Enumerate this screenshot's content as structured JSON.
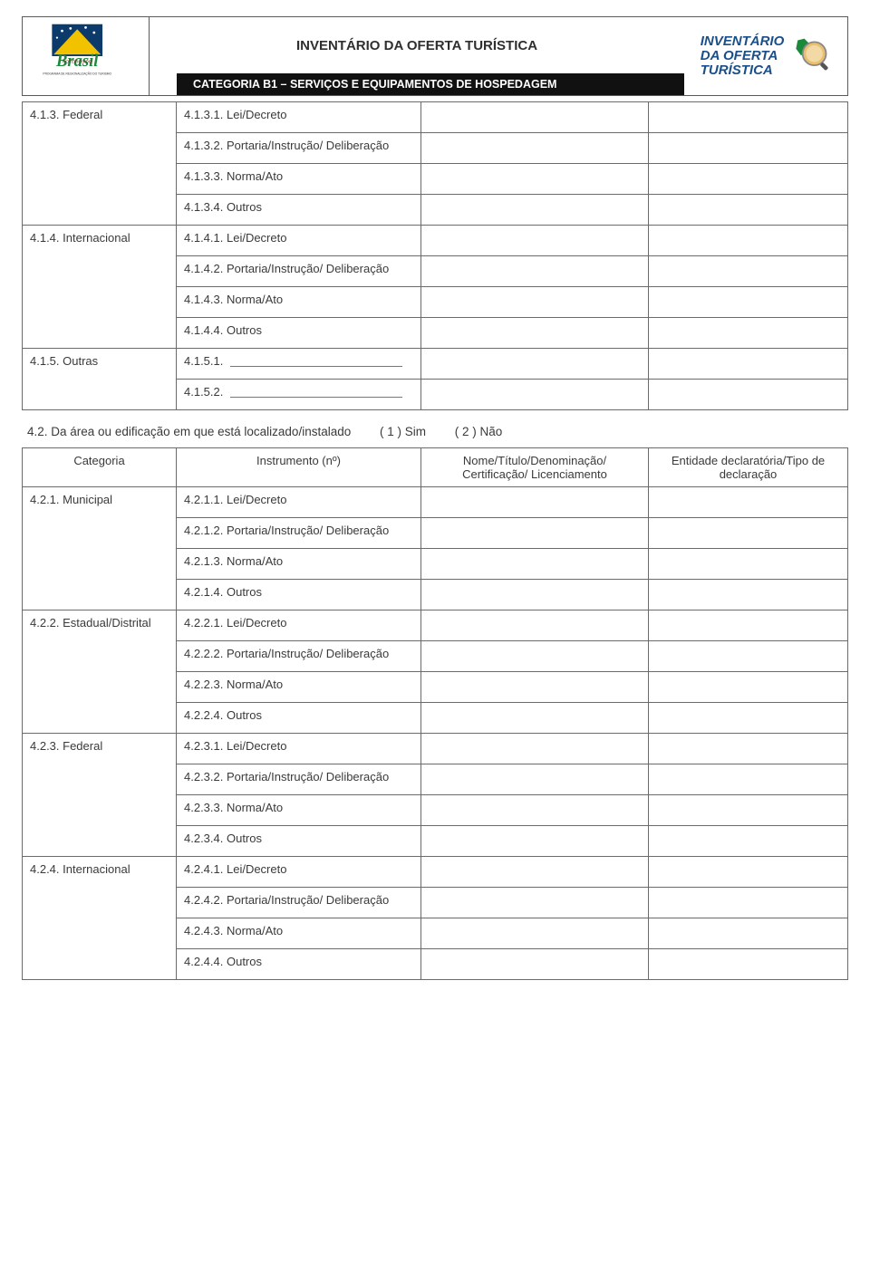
{
  "header": {
    "title": "INVENTÁRIO DA OFERTA TURÍSTICA",
    "bar": "CATEGORIA B1 – SERVIÇOS E EQUIPAMENTOS DE HOSPEDAGEM",
    "rightLogo": {
      "line1": "INVENTÁRIO",
      "line2": "DA OFERTA",
      "line3": "TURÍSTICA"
    },
    "leftLogo": {
      "alt": "Roteiros do Brasil",
      "caption": "PROGRAMA DE REGIONALIZAÇÃO DO TURISMO"
    }
  },
  "section41": {
    "rows": [
      {
        "cat": "4.1.3.  Federal",
        "items": [
          "4.1.3.1. Lei/Decreto",
          "4.1.3.2. Portaria/Instrução/ Deliberação",
          "4.1.3.3. Norma/Ato",
          "4.1.3.4. Outros"
        ]
      },
      {
        "cat": "4.1.4.  Internacional",
        "items": [
          "4.1.4.1. Lei/Decreto",
          "4.1.4.2. Portaria/Instrução/ Deliberação",
          "4.1.4.3. Norma/Ato",
          "4.1.4.4. Outros"
        ]
      },
      {
        "cat": "4.1.5.  Outras",
        "items": [
          "4.1.5.1.",
          "4.1.5.2."
        ],
        "blank": true
      }
    ]
  },
  "section42": {
    "question": "4.2. Da área ou edificação em que está localizado/instalado",
    "opt1": "( 1 ) Sim",
    "opt2": "( 2 ) Não",
    "headers": {
      "cat": "Categoria",
      "inst": "Instrumento (nº)",
      "nome": "Nome/Título/Denominação/ Certificação/ Licenciamento",
      "ent": "Entidade declaratória/Tipo de declaração"
    },
    "rows": [
      {
        "cat": "4.2.1.  Municipal",
        "items": [
          "4.2.1.1. Lei/Decreto",
          "4.2.1.2. Portaria/Instrução/ Deliberação",
          "4.2.1.3. Norma/Ato",
          "4.2.1.4. Outros"
        ]
      },
      {
        "cat": "4.2.2.  Estadual/Distrital",
        "items": [
          "4.2.2.1. Lei/Decreto",
          "4.2.2.2. Portaria/Instrução/ Deliberação",
          "4.2.2.3. Norma/Ato",
          "4.2.2.4. Outros"
        ]
      },
      {
        "cat": "4.2.3.  Federal",
        "items": [
          "4.2.3.1. Lei/Decreto",
          "4.2.3.2. Portaria/Instrução/ Deliberação",
          "4.2.3.3. Norma/Ato",
          "4.2.3.4. Outros"
        ]
      },
      {
        "cat": "4.2.4.  Internacional",
        "items": [
          "4.2.4.1. Lei/Decreto",
          "4.2.4.2. Portaria/Instrução/ Deliberação",
          "4.2.4.3. Norma/Ato",
          "4.2.4.4. Outros"
        ]
      }
    ]
  },
  "colors": {
    "border": "#6a6a6a",
    "text": "#3a3a3a",
    "barBg": "#111111",
    "barText": "#ffffff",
    "logoBlue": "#1a4f8a"
  }
}
